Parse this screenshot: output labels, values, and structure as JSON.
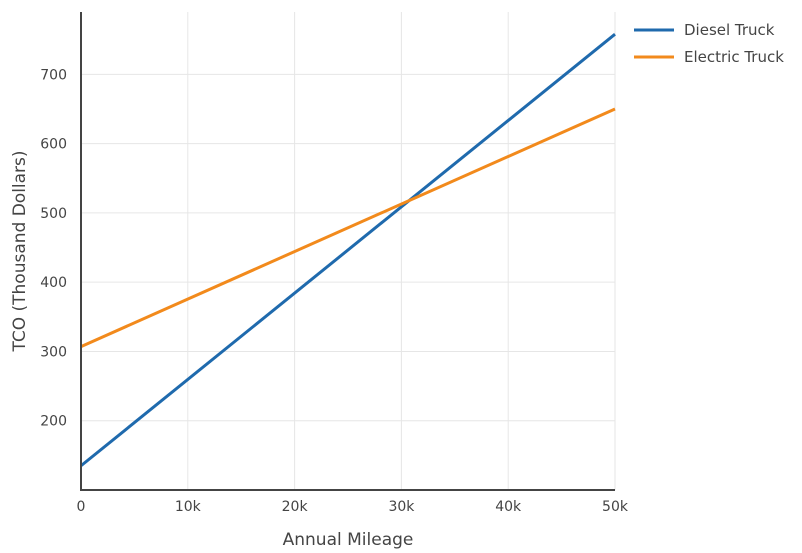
{
  "chart_data": {
    "type": "line",
    "title": "",
    "xlabel": "Annual Mileage",
    "ylabel": "TCO (Thousand Dollars)",
    "xlim": [
      0,
      50000
    ],
    "ylim": [
      100,
      790
    ],
    "x_ticks": [
      0,
      10000,
      20000,
      30000,
      40000,
      50000
    ],
    "x_tick_labels": [
      "0",
      "10k",
      "20k",
      "30k",
      "40k",
      "50k"
    ],
    "y_ticks": [
      200,
      300,
      400,
      500,
      600,
      700
    ],
    "y_tick_labels": [
      "200",
      "300",
      "400",
      "500",
      "600",
      "700"
    ],
    "grid": true,
    "legend_position": "top-right",
    "series": [
      {
        "name": "Diesel Truck",
        "color": "#1f6aad",
        "x": [
          0,
          50000
        ],
        "y": [
          135,
          758
        ]
      },
      {
        "name": "Electric Truck",
        "color": "#f28a1c",
        "x": [
          0,
          50000
        ],
        "y": [
          307,
          650
        ]
      }
    ]
  }
}
